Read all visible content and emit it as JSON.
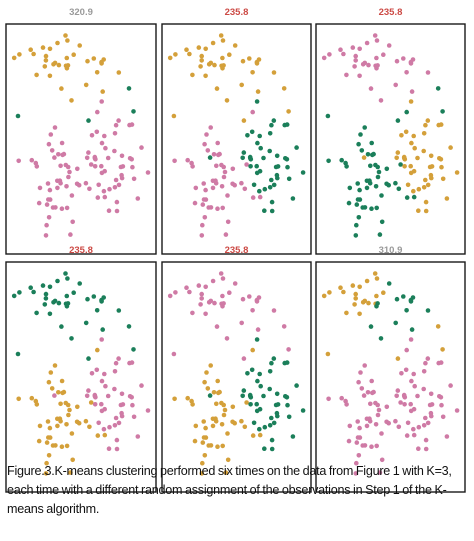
{
  "caption": "Figure.3.K-means clustering performed six times on the data from Figure 1 with K=3, each time with a different random assignment of the observations in Step 1 of the K-means algorithm.",
  "colors": {
    "pink": "#cf7aa5",
    "green": "#1b7f5a",
    "gold": "#d4a03a",
    "title_red": "#cc4a45",
    "title_gray": "#9a9a9a"
  },
  "chart_data": [
    {
      "type": "scatter",
      "title": "320.9",
      "title_color": "gray",
      "clusters": {
        "top_left": "gold",
        "top_right": "gold",
        "bottom_left": "pink",
        "bottom_right": "pink",
        "outlier": "green"
      }
    },
    {
      "type": "scatter",
      "title": "235.8",
      "title_color": "red",
      "clusters": {
        "top_left": "gold",
        "top_right": "gold",
        "bottom_left": "pink",
        "bottom_right": "green",
        "outlier": "gold"
      }
    },
    {
      "type": "scatter",
      "title": "235.8",
      "title_color": "red",
      "clusters": {
        "top_left": "pink",
        "top_right": "pink",
        "bottom_left": "green",
        "bottom_right": "gold",
        "outlier": "green"
      }
    },
    {
      "type": "scatter",
      "title": "235.8",
      "title_color": "red",
      "clusters": {
        "top_left": "green",
        "top_right": "green",
        "bottom_left": "gold",
        "bottom_right": "pink",
        "outlier": "green"
      }
    },
    {
      "type": "scatter",
      "title": "235.8",
      "title_color": "red",
      "clusters": {
        "top_left": "pink",
        "top_right": "pink",
        "bottom_left": "gold",
        "bottom_right": "green",
        "outlier": "pink"
      }
    },
    {
      "type": "scatter",
      "title": "310.9",
      "title_color": "gray",
      "clusters": {
        "top_left": "gold",
        "top_right": "green",
        "bottom_left": "pink",
        "bottom_right": "pink",
        "outlier": "gold"
      }
    }
  ]
}
